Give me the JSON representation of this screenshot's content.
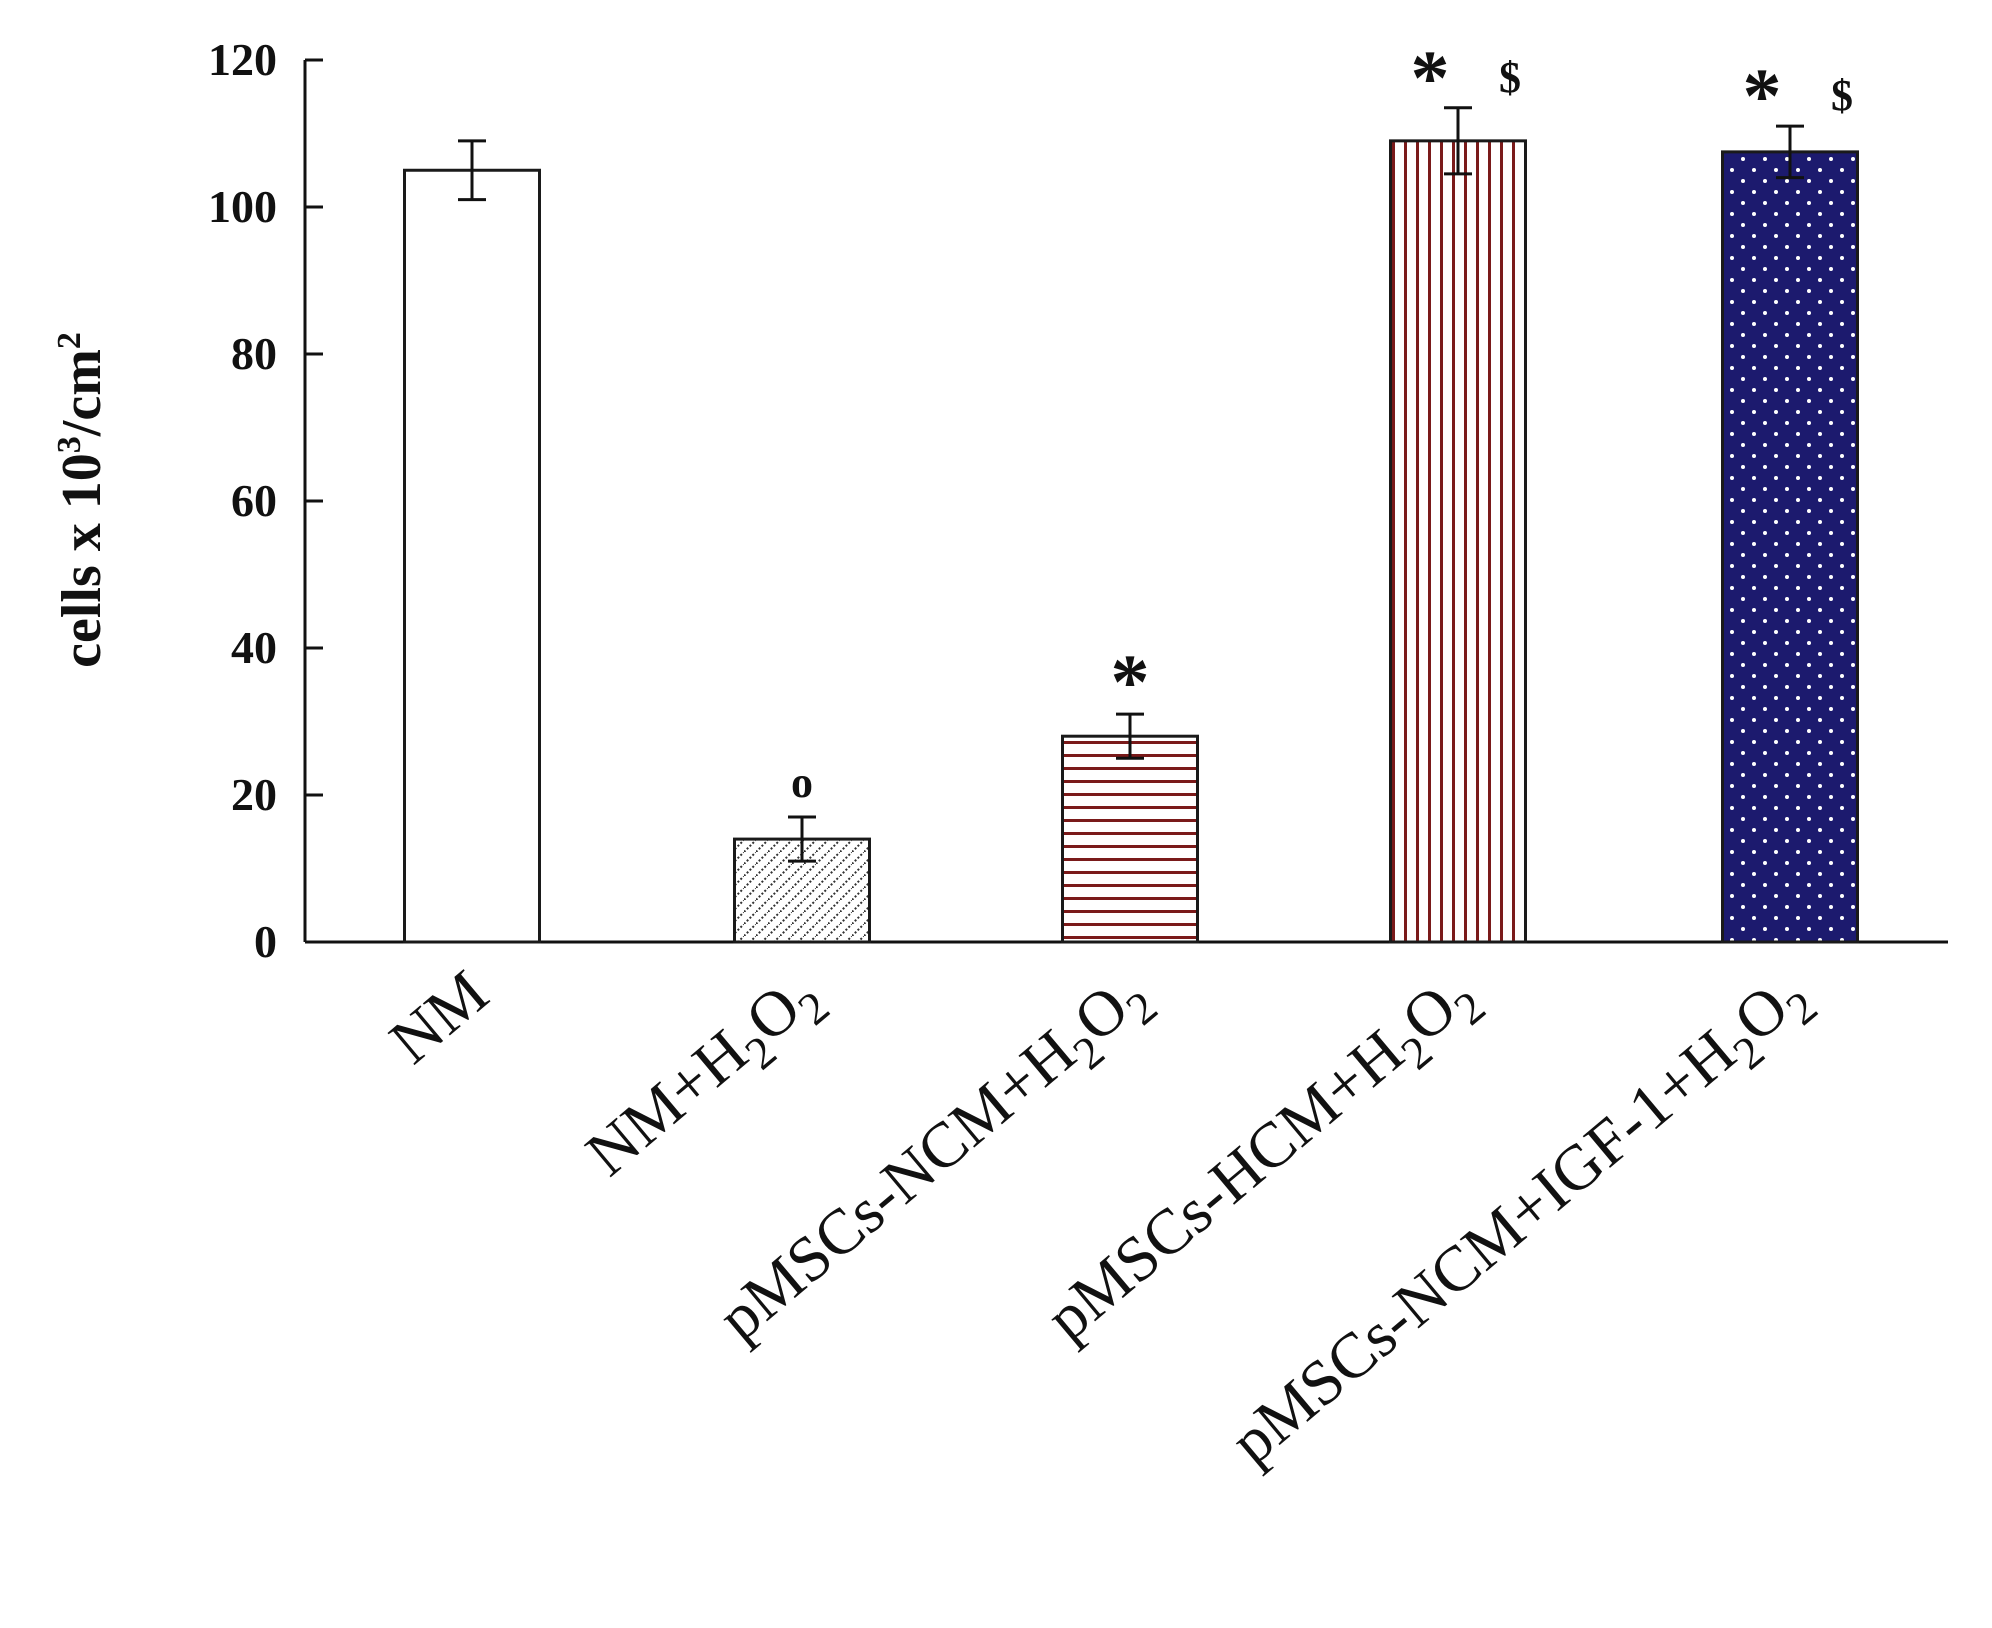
{
  "chart_data": {
    "type": "bar",
    "title": "",
    "xlabel": "",
    "ylabel": {
      "text": "cells x 10",
      "sup_exp": "3",
      "unit_prefix": "/cm",
      "sup_unit": "2"
    },
    "ylim": [
      0,
      120
    ],
    "yticks": [
      "0",
      "20",
      "40",
      "60",
      "80",
      "100",
      "120"
    ],
    "grid": false,
    "categories": [
      {
        "main": "NM",
        "suffix_parts": []
      },
      {
        "main": "NM+H",
        "suffix_parts": [
          {
            "t": "2",
            "sub": true
          },
          {
            "t": "O",
            "sub": false
          },
          {
            "t": "2",
            "sub": true
          }
        ]
      },
      {
        "main": "pMSCs-NCM+H",
        "suffix_parts": [
          {
            "t": "2",
            "sub": true
          },
          {
            "t": "O",
            "sub": false
          },
          {
            "t": "2",
            "sub": true
          }
        ]
      },
      {
        "main": "pMSCs-HCM+H",
        "suffix_parts": [
          {
            "t": "2",
            "sub": true
          },
          {
            "t": "O",
            "sub": false
          },
          {
            "t": "2",
            "sub": true
          }
        ]
      },
      {
        "main": "pMSCs-NCM+IGF-1+H",
        "suffix_parts": [
          {
            "t": "2",
            "sub": true
          },
          {
            "t": "O",
            "sub": false
          },
          {
            "t": "2",
            "sub": true
          }
        ]
      }
    ],
    "values": [
      105,
      14,
      28,
      109,
      107.5
    ],
    "errors": [
      4,
      3,
      3,
      4.5,
      3.5
    ],
    "fills": [
      "plain",
      "diagonal-dots",
      "horizontal-lines",
      "vertical-lines",
      "dots-on-navy"
    ],
    "colors": {
      "bar_outline": "#1a1a1a",
      "plain_fill": "#ffffff",
      "stripe_color": "#7a1a1a",
      "navy_fill": "#1c1a6e",
      "dot_color": "#ffffff",
      "hatch_color": "#333333"
    },
    "annotations": [
      [],
      [
        "o"
      ],
      [
        "*"
      ],
      [
        "*",
        "$"
      ],
      [
        "*",
        "$"
      ]
    ]
  }
}
